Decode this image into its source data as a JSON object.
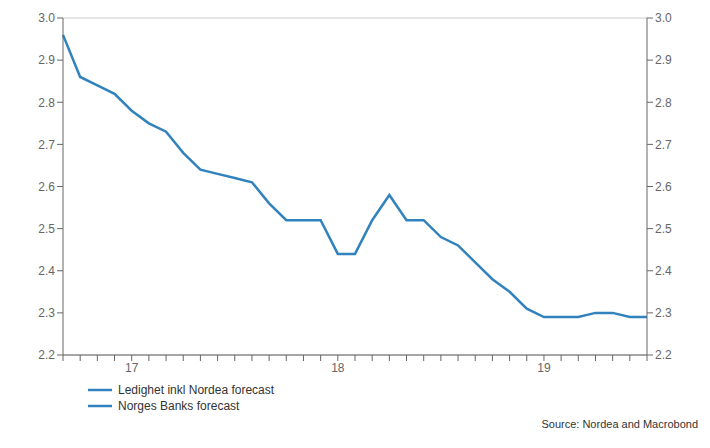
{
  "chart_data": {
    "type": "line",
    "categories": [
      null,
      null,
      null,
      null,
      "17",
      null,
      null,
      null,
      null,
      null,
      null,
      null,
      null,
      null,
      null,
      null,
      "18",
      null,
      null,
      null,
      null,
      null,
      null,
      null,
      null,
      null,
      null,
      null,
      "19",
      null,
      null,
      null,
      null,
      null,
      null
    ],
    "values": [
      2.96,
      2.86,
      2.84,
      2.82,
      2.78,
      2.75,
      2.73,
      2.68,
      2.64,
      2.63,
      2.62,
      2.61,
      2.56,
      2.52,
      2.52,
      2.52,
      2.44,
      2.44,
      2.52,
      2.58,
      2.52,
      2.52,
      2.48,
      2.46,
      2.42,
      2.38,
      2.35,
      2.31,
      2.29,
      2.29,
      2.29,
      2.3,
      2.3,
      2.29,
      2.29
    ],
    "ylim": [
      2.2,
      3.0
    ],
    "yticks": [
      2.2,
      2.3,
      2.4,
      2.5,
      2.6,
      2.7,
      2.8,
      2.9,
      {
        "value": 3.0,
        "label": "3.0"
      }
    ],
    "y2lim": [
      2.2,
      3.0
    ],
    "y2ticks": [
      2.2,
      2.3,
      2.4,
      2.5,
      2.6,
      2.7,
      2.8,
      2.9,
      {
        "value": 3.0,
        "label": "3.0"
      }
    ],
    "grid": true,
    "legend": "lower left",
    "legend_entries": [
      "Ledighet inkl Nordea forecast",
      "Norges Banks forecast"
    ],
    "annotations": [
      "Source: Nordea and Macrobond"
    ]
  }
}
